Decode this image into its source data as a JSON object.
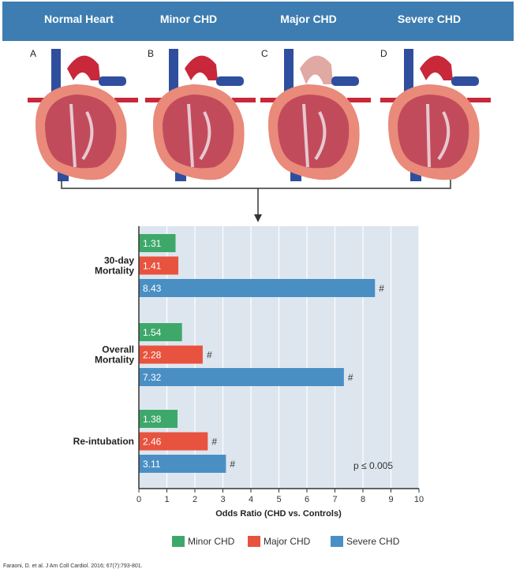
{
  "header": {
    "labels": [
      "Normal Heart",
      "Minor CHD",
      "Major  CHD",
      "Severe CHD"
    ]
  },
  "panels": [
    "A",
    "B",
    "C",
    "D"
  ],
  "citation": "Faraoni, D. et al. J Am Coll Cardiol. 2016; 67(7):793-801.",
  "chart_data": {
    "type": "bar",
    "orientation": "horizontal",
    "xlabel": "Odds Ratio (CHD vs. Controls)",
    "xlim": [
      0,
      10
    ],
    "xticks": [
      "0",
      "1",
      "2",
      "3",
      "4",
      "5",
      "6",
      "7",
      "8",
      "9",
      "10"
    ],
    "categories": [
      "30-day Mortality",
      "Overall Mortality",
      "Re-intubation"
    ],
    "series": [
      {
        "name": "Minor CHD",
        "color": "#3ea86b",
        "values": [
          1.31,
          1.54,
          1.38
        ],
        "labels": [
          "1.31",
          "1.54",
          "1.38"
        ],
        "marks": [
          "",
          "",
          ""
        ]
      },
      {
        "name": "Major CHD",
        "color": "#e8533f",
        "values": [
          1.41,
          2.28,
          2.46
        ],
        "labels": [
          "1.41",
          "2.28",
          "2.46"
        ],
        "marks": [
          "",
          "#",
          "#"
        ]
      },
      {
        "name": "Severe CHD",
        "color": "#4a8fc4",
        "values": [
          8.43,
          7.32,
          3.11
        ],
        "labels": [
          "8.43",
          "7.32",
          "3.11"
        ],
        "marks": [
          "#",
          "#",
          "#"
        ]
      }
    ],
    "annotation": "p ≤ 0.005",
    "grid": true,
    "legend_position": "bottom"
  },
  "colors": {
    "header": "#3d7db1",
    "plot_bg": "#dde6ee",
    "grid": "#ffffff"
  }
}
